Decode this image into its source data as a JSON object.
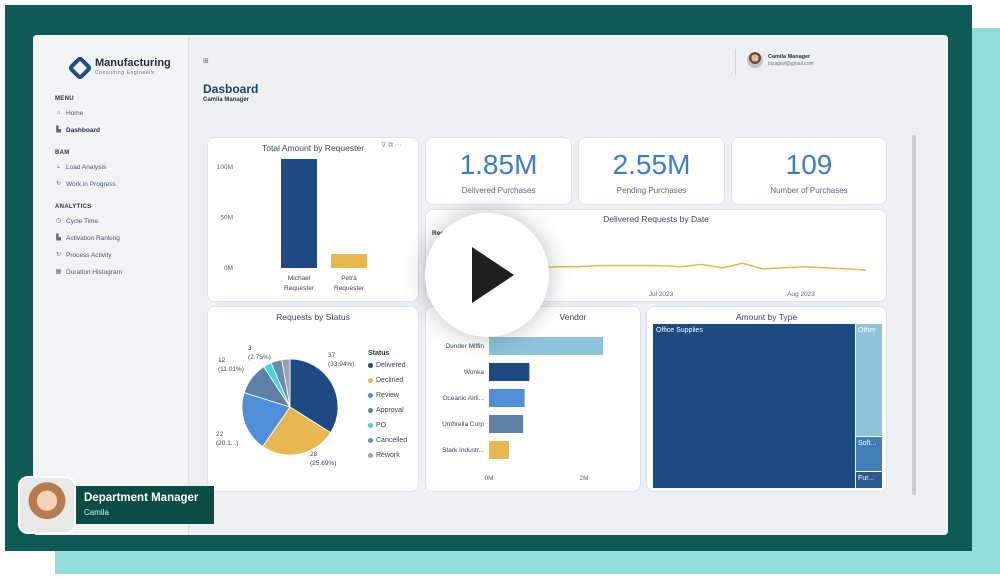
{
  "app": {
    "brand_title": "Manufacturing",
    "brand_subtitle": "Consulting Engineers"
  },
  "sidebar": {
    "sections": [
      {
        "label": "MENU",
        "items": [
          {
            "label": "Home",
            "icon": "home-icon"
          },
          {
            "label": "Dashboard",
            "icon": "bar-chart-icon",
            "active": true
          }
        ]
      },
      {
        "label": "BAM",
        "items": [
          {
            "label": "Load Analysis",
            "icon": "line-chart-icon"
          },
          {
            "label": "Work in Progress",
            "icon": "progress-icon"
          }
        ]
      },
      {
        "label": "ANALYTICS",
        "items": [
          {
            "label": "Cycle Time",
            "icon": "clock-icon"
          },
          {
            "label": "Activation Ranking",
            "icon": "ranking-icon"
          },
          {
            "label": "Process Activity",
            "icon": "activity-icon"
          },
          {
            "label": "Duration Histogram",
            "icon": "histogram-icon"
          }
        ]
      }
    ]
  },
  "header": {
    "title": "Dasboard",
    "subtitle": "Camila Manager",
    "user_name": "Camila Manager",
    "user_email": "bizagiwl@gmail.com"
  },
  "kpis": [
    {
      "value": "1.85M",
      "label": "Delivered Purchases"
    },
    {
      "value": "2.55M",
      "label": "Pending Purchases"
    },
    {
      "value": "109",
      "label": "Number of Purchases"
    }
  ],
  "chart_data": [
    {
      "type": "bar",
      "title": "Total Amount by Requester",
      "categories": [
        "Michael Requester",
        "Petra Requester"
      ],
      "category_lines": [
        [
          "Michael",
          "Requester"
        ],
        [
          "Petra",
          "Requester"
        ]
      ],
      "values": [
        109,
        14
      ],
      "yticks": [
        "100M",
        "50M",
        "0M"
      ],
      "ylim": [
        0,
        110
      ],
      "colors": [
        "#1d4a82",
        "#e6b84f"
      ]
    },
    {
      "type": "line",
      "title": "Delivered Requests by Date",
      "ylabel": "Reque",
      "xticks": [
        "Jul 2023",
        "Aug 2023"
      ],
      "values": [
        8,
        9,
        10,
        10.5,
        11,
        11.5,
        12,
        12,
        12.5,
        12.5,
        12.5,
        12.5,
        12,
        13,
        11.5,
        13.5,
        11,
        11.5,
        12,
        11.5,
        11,
        10.5
      ],
      "color": "#e6b84f"
    },
    {
      "type": "pie",
      "title": "Requests by Status",
      "legend_title": "Status",
      "slices": [
        {
          "name": "Delivered",
          "value": 37,
          "label": "37",
          "pct": "(33.94%)",
          "color": "#1d4a82"
        },
        {
          "name": "Declined",
          "value": 28,
          "label": "28",
          "pct": "(25.69%)",
          "color": "#e6b84f"
        },
        {
          "name": "Review",
          "value": 22,
          "label": "22",
          "pct": "(20.1...)",
          "color": "#4f8fd8"
        },
        {
          "name": "Approval",
          "value": 12,
          "label": "12",
          "pct": "(11.01%)",
          "color": "#5e7fa6"
        },
        {
          "name": "PO",
          "value": 3,
          "label": "3",
          "pct": "(2.75%)",
          "color": "#3fd6e0"
        },
        {
          "name": "Cancelled",
          "value": 4,
          "label": "",
          "pct": "",
          "color": "#6a8bb0"
        },
        {
          "name": "Rework",
          "value": 3,
          "label": "",
          "pct": "",
          "color": "#9aa3ad"
        }
      ]
    },
    {
      "type": "bar",
      "orientation": "horizontal",
      "title": "Vendor",
      "categories": [
        "Dunder Mifflin",
        "Wonka",
        "Oceanic Airli...",
        "Umbrella Corp",
        "Stark Industr..."
      ],
      "category_labels": [
        "Dunder Miffin",
        "Wonka",
        "Oceanic Airli...",
        "Umbrella Corp",
        "Stark Industr..."
      ],
      "values": [
        2.4,
        0.85,
        0.75,
        0.72,
        0.42
      ],
      "xticks": [
        "0M",
        "2M"
      ],
      "xlim": [
        0,
        3
      ],
      "colors": [
        "#8ec3dc",
        "#1d4a82",
        "#4f8fd8",
        "#5e7fa6",
        "#e6b84f"
      ]
    },
    {
      "type": "treemap",
      "title": "Amount by Type",
      "items": [
        {
          "name": "Office Supplies",
          "color": "#1d4a82"
        },
        {
          "name": "Other",
          "color": "#8ec3dc"
        },
        {
          "name": "Soft...",
          "color": "#3f7fb8"
        },
        {
          "name": "Fur...",
          "color": "#2a5a90"
        }
      ]
    }
  ],
  "presenter": {
    "title": "Department Manager",
    "name": "Camila"
  }
}
